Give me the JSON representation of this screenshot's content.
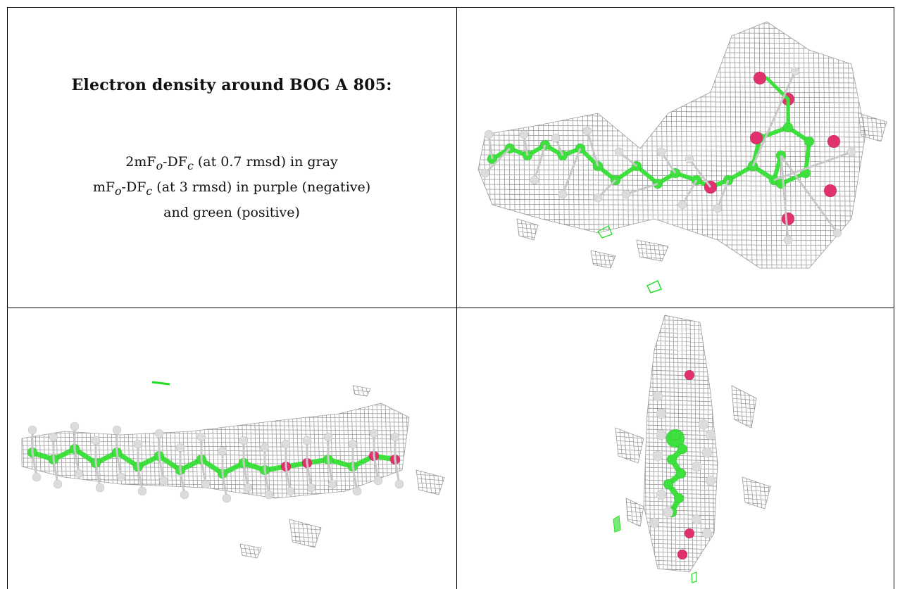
{
  "caption": {
    "title": "Electron density around BOG A 805:",
    "line1": {
      "a": "2mF",
      "b": "o",
      "c": "-DF",
      "d": "c",
      "e": " (at 0.7 rmsd) in gray"
    },
    "line2": {
      "a": "mF",
      "b": "o",
      "c": "-DF",
      "d": "c",
      "e": " (at 3 rmsd) in purple (negative)"
    },
    "line3": "and green (positive)"
  },
  "colors": {
    "mesh": "#9a9a9a",
    "carbon": "#3ee03e",
    "oxygen": "#e0306e",
    "hydrogen": "#dcdcdc",
    "positive_density": "#22dd22"
  },
  "panels": [
    {
      "name": "view-1-top-right",
      "icon": "molecule-view"
    },
    {
      "name": "view-2-bottom-left",
      "icon": "molecule-view"
    },
    {
      "name": "view-3-bottom-right",
      "icon": "molecule-view"
    }
  ]
}
